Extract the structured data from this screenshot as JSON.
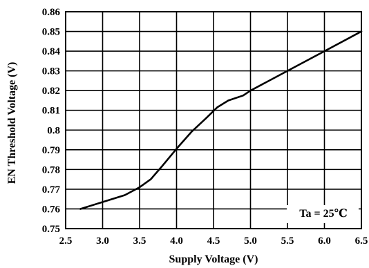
{
  "chart_data": {
    "type": "line",
    "title": "",
    "xlabel": "Supply Voltage (V)",
    "ylabel": "EN Threshold  Voltage (V)",
    "xlim": [
      2.5,
      6.5
    ],
    "ylim": [
      0.75,
      0.86
    ],
    "x_ticks": [
      "2.5",
      "3.0",
      "3.5",
      "4.0",
      "4.5",
      "5.0",
      "5.5",
      "6.0",
      "6.5"
    ],
    "y_ticks": [
      "0.75",
      "0.76",
      "0.77",
      "0.78",
      "0.79",
      "0.8",
      "0.81",
      "0.82",
      "0.83",
      "0.84",
      "0.85",
      "0.86"
    ],
    "grid": true,
    "annotation": "Ta = 25℃",
    "series": [
      {
        "color": "#000000",
        "points": [
          [
            2.7,
            0.76
          ],
          [
            3.0,
            0.7635
          ],
          [
            3.3,
            0.767
          ],
          [
            3.5,
            0.771
          ],
          [
            3.65,
            0.775
          ],
          [
            3.8,
            0.7815
          ],
          [
            4.0,
            0.7905
          ],
          [
            4.2,
            0.799
          ],
          [
            4.4,
            0.806
          ],
          [
            4.55,
            0.8115
          ],
          [
            4.7,
            0.815
          ],
          [
            4.9,
            0.8175
          ],
          [
            5.0,
            0.82
          ],
          [
            5.5,
            0.83
          ],
          [
            6.0,
            0.84
          ],
          [
            6.5,
            0.85
          ]
        ]
      }
    ]
  }
}
